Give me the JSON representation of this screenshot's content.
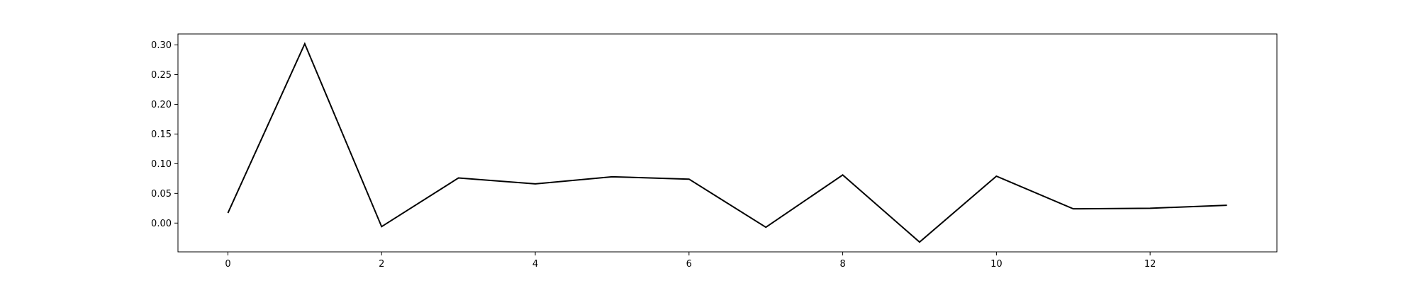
{
  "chart_data": {
    "type": "line",
    "title": "",
    "xlabel": "",
    "ylabel": "",
    "x": [
      0,
      1,
      2,
      3,
      4,
      5,
      6,
      7,
      8,
      9,
      10,
      11,
      12,
      13
    ],
    "series": [
      {
        "name": "",
        "color": "#000000",
        "values": [
          0.017,
          0.302,
          -0.006,
          0.076,
          0.066,
          0.078,
          0.074,
          -0.007,
          0.081,
          -0.032,
          0.079,
          0.024,
          0.025,
          0.03
        ]
      }
    ],
    "xlim": [
      -0.65,
      13.65
    ],
    "ylim": [
      -0.0485,
      0.3185
    ],
    "x_ticks": [
      0,
      2,
      4,
      6,
      8,
      10,
      12
    ],
    "x_tick_labels": [
      "0",
      "2",
      "4",
      "6",
      "8",
      "10",
      "12"
    ],
    "y_ticks": [
      0.0,
      0.05,
      0.1,
      0.15,
      0.2,
      0.25,
      0.3
    ],
    "y_tick_labels": [
      "0.00",
      "0.05",
      "0.10",
      "0.15",
      "0.20",
      "0.25",
      "0.30"
    ],
    "grid": false,
    "legend": "none"
  }
}
